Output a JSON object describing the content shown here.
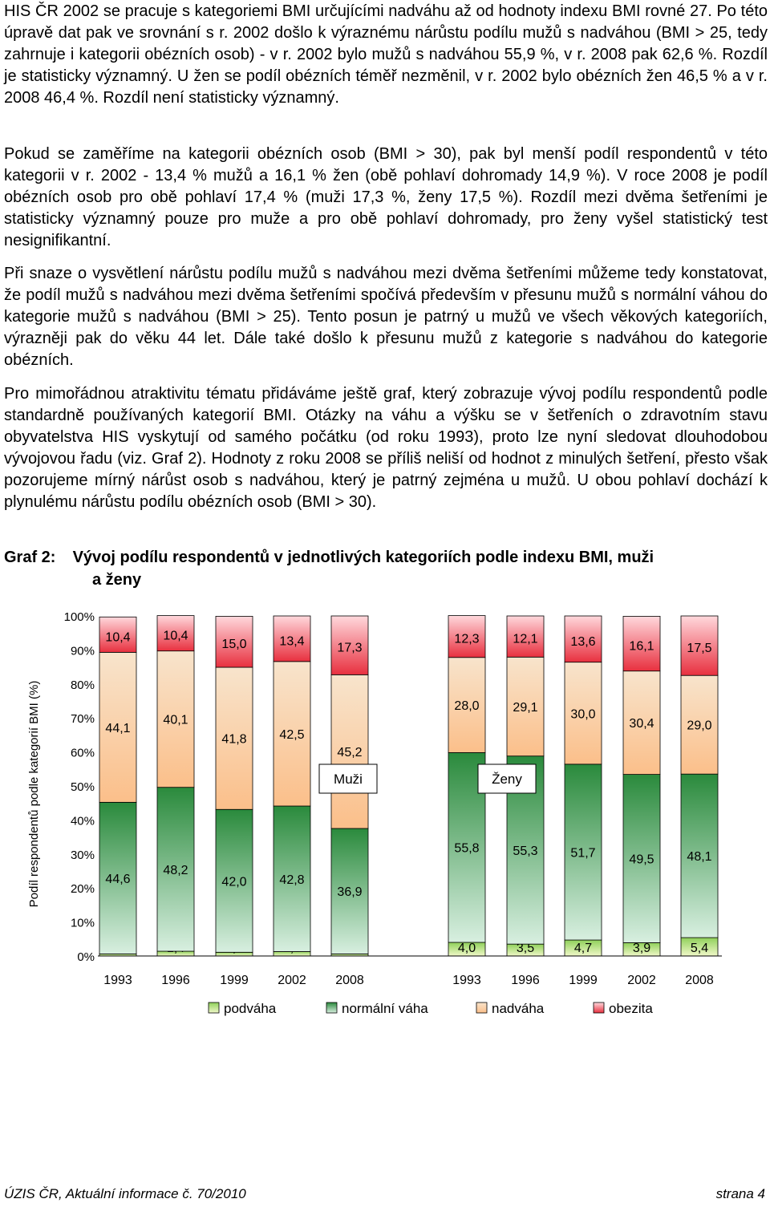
{
  "paragraphs": [
    "HIS ČR 2002 se pracuje s kategoriemi BMI určujícími nadváhu až od hodnoty indexu BMI rovné 27. Po této úpravě dat pak ve srovnání s r. 2002 došlo k výraznému nárůstu podílu mužů s nadváhou (BMI > 25, tedy zahrnuje i kategorii obézních osob) - v r. 2002 bylo mužů s nadváhou 55,9 %, v r. 2008 pak 62,6 %. Rozdíl je statisticky významný. U žen se podíl obézních téměř nezměnil, v r. 2002 bylo obézních žen 46,5 % a v r. 2008 46,4 %. Rozdíl není statisticky významný.",
    "Pokud se zaměříme na kategorii obézních osob (BMI > 30), pak byl menší podíl respondentů v této kategorii v r. 2002 - 13,4 % mužů a 16,1 % žen (obě pohlaví dohromady 14,9 %). V roce 2008 je podíl obézních osob pro obě pohlaví 17,4 % (muži 17,3 %, ženy 17,5 %). Rozdíl mezi dvěma šetřeními je statisticky významný pouze pro muže a pro obě pohlaví dohromady, pro ženy vyšel statistický test nesignifikantní.",
    "Při snaze o vysvětlení nárůstu podílu mužů s nadváhou mezi dvěma šetřeními můžeme tedy konstatovat, že podíl mužů s nadváhou mezi dvěma šetřeními spočívá především v přesunu mužů s normální váhou do kategorie mužů s nadváhou (BMI > 25). Tento posun je patrný u mužů ve všech věkových kategoriích, výrazněji pak do věku 44 let. Dále také došlo k přesunu mužů z kategorie s nadváhou do kategorie obézních.",
    "Pro mimořádnou atraktivitu tématu přidáváme ještě graf, který zobrazuje vývoj podílu respondentů podle standardně používaných kategorií BMI. Otázky na váhu a výšku se v šetřeních o zdravotním stavu obyvatelstva HIS vyskytují od samého počátku (od roku 1993), proto lze nyní sledovat dlouhodobou vývojovou řadu (viz. Graf 2). Hodnoty z roku 2008 se příliš neliší od hodnot z minulých šetření, přesto však pozorujeme mírný nárůst osob s nadváhou, který je patrný zejména u mužů. U obou pohlaví dochází k plynulému nárůstu podílu obézních osob (BMI > 30)."
  ],
  "caption": {
    "label": "Graf 2:",
    "line1": "Vývoj podílu respondentů v jednotlivých kategoriích podle indexu BMI, muži",
    "line2": "a ženy"
  },
  "chart_data": {
    "type": "bar",
    "stacked": true,
    "ylabel": "Podíl respondentů podle kategorií BMI (%)",
    "ylim": [
      0,
      100
    ],
    "yticks": [
      "0%",
      "10%",
      "20%",
      "30%",
      "40%",
      "50%",
      "60%",
      "70%",
      "80%",
      "90%",
      "100%"
    ],
    "legend": {
      "placement": "bottom",
      "items": [
        "podváha",
        "normální váha",
        "nadváha",
        "obezita"
      ]
    },
    "groups": [
      {
        "label": "Muži",
        "categories": [
          "1993",
          "1996",
          "1999",
          "2002",
          "2008"
        ],
        "series": [
          {
            "name": "podváha",
            "values": [
              0.6,
              1.4,
              1.1,
              1.3,
              0.6
            ],
            "labels": [
              "0,6",
              "1,4",
              "1,1",
              "1,3",
              "0,6"
            ]
          },
          {
            "name": "normální váha",
            "values": [
              44.6,
              48.2,
              42.0,
              42.8,
              36.9
            ],
            "labels": [
              "44,6",
              "48,2",
              "42,0",
              "42,8",
              "36,9"
            ]
          },
          {
            "name": "nadváha",
            "values": [
              44.1,
              40.1,
              41.8,
              42.5,
              45.2
            ],
            "labels": [
              "44,1",
              "40,1",
              "41,8",
              "42,5",
              "45,2"
            ]
          },
          {
            "name": "obezita",
            "values": [
              10.4,
              10.4,
              15.0,
              13.4,
              17.3
            ],
            "labels": [
              "10,4",
              "10,4",
              "15,0",
              "13,4",
              "17,3"
            ]
          }
        ]
      },
      {
        "label": "Ženy",
        "categories": [
          "1993",
          "1996",
          "1999",
          "2002",
          "2008"
        ],
        "series": [
          {
            "name": "podváha",
            "values": [
              4.0,
              3.5,
              4.7,
              3.9,
              5.4
            ],
            "labels": [
              "4,0",
              "3,5",
              "4,7",
              "3,9",
              "5,4"
            ]
          },
          {
            "name": "normální váha",
            "values": [
              55.8,
              55.3,
              51.7,
              49.5,
              48.1
            ],
            "labels": [
              "55,8",
              "55,3",
              "51,7",
              "49,5",
              "48,1"
            ]
          },
          {
            "name": "nadváha",
            "values": [
              28.0,
              29.1,
              30.0,
              30.4,
              29.0
            ],
            "labels": [
              "28,0",
              "29,1",
              "30,0",
              "30,4",
              "29,0"
            ]
          },
          {
            "name": "obezita",
            "values": [
              12.3,
              12.1,
              13.6,
              16.1,
              17.5
            ],
            "labels": [
              "12,3",
              "12,1",
              "13,6",
              "16,1",
              "17,5"
            ]
          }
        ]
      }
    ],
    "colors": {
      "podváha": [
        "#8fd05a",
        "#f0f8c8"
      ],
      "normální váha": [
        "#2a8a3c",
        "#d8efe0"
      ],
      "nadváha": [
        "#f8e4cc",
        "#fbbf8a"
      ],
      "obezita": [
        "#ffd8dc",
        "#e8303f"
      ]
    }
  },
  "footer": {
    "left": "ÚZIS ČR, Aktuální informace č. 70/2010",
    "right": "strana 4"
  }
}
